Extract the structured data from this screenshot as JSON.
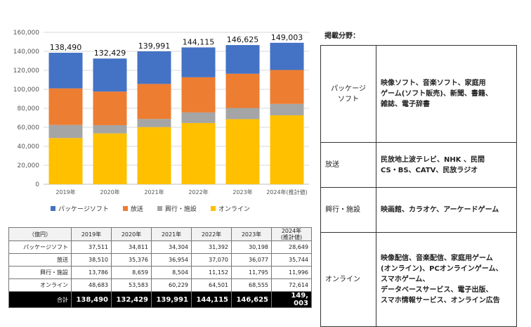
{
  "chart_data": {
    "type": "bar",
    "stacked": true,
    "categories": [
      "2019年",
      "2020年",
      "2021年",
      "2022年",
      "2023年",
      "2024年(推計値)"
    ],
    "series": [
      {
        "name": "オンライン",
        "values": [
          48683,
          53583,
          60229,
          64501,
          68555,
          72614
        ],
        "color": "#FFC000"
      },
      {
        "name": "興行・施設",
        "values": [
          13786,
          8659,
          8504,
          11152,
          11795,
          11996
        ],
        "color": "#A5A5A5"
      },
      {
        "name": "放送",
        "values": [
          38510,
          35376,
          36954,
          37070,
          36077,
          35744
        ],
        "color": "#ED7D31"
      },
      {
        "name": "パッケージソフト",
        "values": [
          37511,
          34811,
          34304,
          31392,
          30198,
          28649
        ],
        "color": "#4472C4"
      }
    ],
    "totals": [
      "138,490",
      "132,429",
      "139,991",
      "144,115",
      "146,625",
      "149,003"
    ],
    "ylim": [
      0,
      160000
    ],
    "yticks": [
      "0",
      "20,000",
      "40,000",
      "60,000",
      "80,000",
      "100,000",
      "120,000",
      "140,000",
      "160,000"
    ],
    "grid": true,
    "legend_position": "bottom",
    "legend_order": [
      "パッケージソフト",
      "放送",
      "興行・施設",
      "オンライン"
    ]
  },
  "table": {
    "unit_label": "（億円）",
    "headers": [
      "2019年",
      "2020年",
      "2021年",
      "2022年",
      "2023年",
      "2024年\n(推計値)"
    ],
    "rows": [
      {
        "label": "パッケージソフト",
        "values": [
          "37,511",
          "34,811",
          "34,304",
          "31,392",
          "30,198",
          "28,649"
        ]
      },
      {
        "label": "放送",
        "values": [
          "38,510",
          "35,376",
          "36,954",
          "37,070",
          "36,077",
          "35,744"
        ]
      },
      {
        "label": "興行・施設",
        "values": [
          "13,786",
          "8,659",
          "8,504",
          "11,152",
          "11,795",
          "11,996"
        ]
      },
      {
        "label": "オンライン",
        "values": [
          "48,683",
          "53,583",
          "60,229",
          "64,501",
          "68,555",
          "72,614"
        ]
      }
    ],
    "total": {
      "label": "合計",
      "values": [
        "138,490",
        "132,429",
        "139,991",
        "144,115",
        "146,625",
        "149, 003"
      ]
    }
  },
  "side": {
    "title": "掲載分野：",
    "rows": [
      {
        "category": "パッケージ\nソフト",
        "center": true,
        "desc": "映像ソフト、音楽ソフト、家庭用\nゲーム(ソフト販売)、新聞、書籍、\n雑誌、電子辞書"
      },
      {
        "category": "放送",
        "center": false,
        "desc": "民放地上波テレビ、NHK 、民間\nCS・BS、CATV、民放ラジオ"
      },
      {
        "category": "興行・施設",
        "center": false,
        "desc": "映画館、カラオケ、アーケードゲーム"
      },
      {
        "category": "オンライン",
        "center": false,
        "desc": "映像配信、音楽配信、家庭用ゲーム\n(オンライン)、PCオンラインゲーム、\nスマホゲーム、\nデータベースサービス、電子出版、\nスマホ情報サービス、オンライン広告"
      }
    ]
  }
}
